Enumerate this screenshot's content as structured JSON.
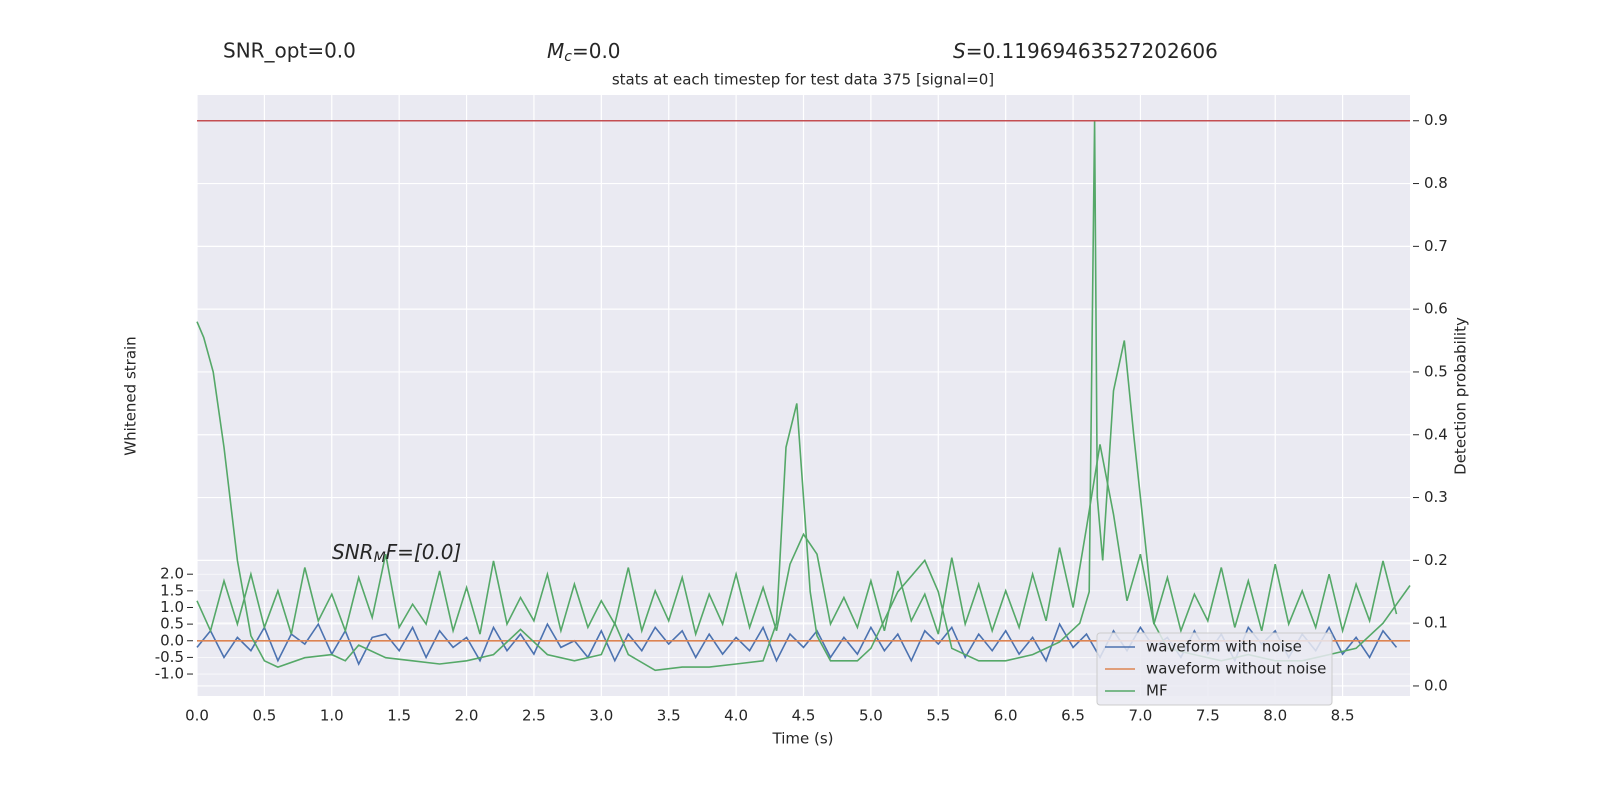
{
  "chart_data": {
    "type": "line",
    "title": "stats at each timestep for test data 375 [signal=0]",
    "annotations": {
      "snr_opt": "SNR_opt=0.0",
      "mc": [
        "M",
        "c",
        "=0.0"
      ],
      "s": [
        "S",
        "=0.11969463527202606"
      ],
      "snr_mf": [
        "SNR",
        "M",
        "F=[0.0]"
      ]
    },
    "xlabel": "Time (s)",
    "ylabel": "Whitened strain",
    "y2label": "Detection probability",
    "xlim": [
      0,
      9
    ],
    "ylim": [
      -1.66,
      16.4
    ],
    "y2lim": [
      -0.016,
      0.941
    ],
    "xticks": [
      {
        "value": 0,
        "label": "0.0"
      },
      {
        "value": 0.5,
        "label": "0.5"
      },
      {
        "value": 1,
        "label": "1.0"
      },
      {
        "value": 1.5,
        "label": "1.5"
      },
      {
        "value": 2,
        "label": "2.0"
      },
      {
        "value": 2.5,
        "label": "2.5"
      },
      {
        "value": 3,
        "label": "3.0"
      },
      {
        "value": 3.5,
        "label": "3.5"
      },
      {
        "value": 4,
        "label": "4.0"
      },
      {
        "value": 4.5,
        "label": "4.5"
      },
      {
        "value": 5,
        "label": "5.0"
      },
      {
        "value": 5.5,
        "label": "5.5"
      },
      {
        "value": 6,
        "label": "6.0"
      },
      {
        "value": 6.5,
        "label": "6.5"
      },
      {
        "value": 7,
        "label": "7.0"
      },
      {
        "value": 7.5,
        "label": "7.5"
      },
      {
        "value": 8,
        "label": "8.0"
      },
      {
        "value": 8.5,
        "label": "8.5"
      }
    ],
    "yticks": [
      {
        "value": -1,
        "label": "-1.0"
      },
      {
        "value": -0.5,
        "label": "-0.5"
      },
      {
        "value": 0,
        "label": "0.0"
      },
      {
        "value": 0.5,
        "label": "0.5"
      },
      {
        "value": 1,
        "label": "1.0"
      },
      {
        "value": 1.5,
        "label": "1.5"
      },
      {
        "value": 2,
        "label": "2.0"
      }
    ],
    "y2ticks": [
      {
        "value": 0,
        "label": "0.0"
      },
      0.1,
      0.2,
      0.3,
      0.4,
      0.5,
      0.6,
      0.7,
      0.8,
      0.9
    ],
    "grid": true,
    "legend": "lower right",
    "threshold": {
      "value": 0.9,
      "color": "#c44e52"
    },
    "series": [
      {
        "name": "waveform with noise",
        "color": "#4c72b0",
        "axis": "y",
        "x": [
          0,
          0.1,
          0.2,
          0.3,
          0.4,
          0.5,
          0.6,
          0.7,
          0.8,
          0.9,
          1,
          1.1,
          1.2,
          1.3,
          1.4,
          1.5,
          1.6,
          1.7,
          1.8,
          1.9,
          2,
          2.1,
          2.2,
          2.3,
          2.4,
          2.5,
          2.6,
          2.7,
          2.8,
          2.9,
          3,
          3.1,
          3.2,
          3.3,
          3.4,
          3.5,
          3.6,
          3.7,
          3.8,
          3.9,
          4,
          4.1,
          4.2,
          4.3,
          4.4,
          4.5,
          4.6,
          4.7,
          4.8,
          4.9,
          5,
          5.1,
          5.2,
          5.3,
          5.4,
          5.5,
          5.6,
          5.7,
          5.8,
          5.9,
          6,
          6.1,
          6.2,
          6.3,
          6.4,
          6.5,
          6.6,
          6.7,
          6.8,
          6.9,
          7,
          7.1,
          7.2,
          7.3,
          7.4,
          7.5,
          7.6,
          7.7,
          7.8,
          7.9,
          8,
          8.1,
          8.2,
          8.3,
          8.4,
          8.5,
          8.6,
          8.7,
          8.8,
          8.9
        ],
        "values": [
          -0.2,
          0.3,
          -0.5,
          0.1,
          -0.3,
          0.4,
          -0.6,
          0.2,
          -0.1,
          0.5,
          -0.4,
          0.3,
          -0.7,
          0.1,
          0.2,
          -0.3,
          0.4,
          -0.5,
          0.3,
          -0.2,
          0.1,
          -0.6,
          0.4,
          -0.3,
          0.2,
          -0.4,
          0.5,
          -0.2,
          0,
          -0.5,
          0.3,
          -0.6,
          0.2,
          -0.3,
          0.4,
          -0.1,
          0.3,
          -0.5,
          0.2,
          -0.4,
          0.1,
          -0.3,
          0.4,
          -0.6,
          0.2,
          -0.2,
          0.3,
          -0.5,
          0.1,
          -0.4,
          0.4,
          -0.3,
          0.2,
          -0.6,
          0.3,
          -0.1,
          0.4,
          -0.5,
          0.2,
          -0.3,
          0.3,
          -0.4,
          0.1,
          -0.6,
          0.5,
          -0.2,
          0.2,
          -0.5,
          0.3,
          -0.3,
          0.4,
          -0.2,
          0.1,
          -0.5,
          0.3,
          -0.4,
          0.2,
          -0.6,
          0.4,
          -0.1,
          0.3,
          -0.5,
          0.2,
          -0.3,
          0.4,
          -0.4,
          0.1,
          -0.5,
          0.3,
          -0.2
        ]
      },
      {
        "name": "waveform without noise",
        "color": "#dd8452",
        "axis": "y",
        "x": [
          0,
          9
        ],
        "values": [
          0,
          0
        ]
      },
      {
        "name": "MF",
        "color": "#55a868",
        "axis": "y",
        "x": [
          0,
          0.1,
          0.2,
          0.3,
          0.4,
          0.5,
          0.6,
          0.7,
          0.8,
          0.9,
          1,
          1.1,
          1.2,
          1.3,
          1.4,
          1.5,
          1.6,
          1.7,
          1.8,
          1.9,
          2,
          2.1,
          2.2,
          2.3,
          2.4,
          2.5,
          2.6,
          2.7,
          2.8,
          2.9,
          3,
          3.1,
          3.2,
          3.3,
          3.4,
          3.5,
          3.6,
          3.7,
          3.8,
          3.9,
          4,
          4.1,
          4.2,
          4.3,
          4.4,
          4.5,
          4.6,
          4.7,
          4.8,
          4.9,
          5,
          5.1,
          5.2,
          5.3,
          5.4,
          5.5,
          5.6,
          5.7,
          5.8,
          5.9,
          6,
          6.1,
          6.2,
          6.3,
          6.4,
          6.5,
          6.6,
          6.7,
          6.8,
          6.9,
          7,
          7.1,
          7.2,
          7.3,
          7.4,
          7.5,
          7.6,
          7.7,
          7.8,
          7.9,
          8,
          8.1,
          8.2,
          8.3,
          8.4,
          8.5,
          8.6,
          8.7,
          8.8,
          8.9
        ],
        "values": [
          1.2,
          0.3,
          1.8,
          0.5,
          2.0,
          0.4,
          1.5,
          0.2,
          2.2,
          0.6,
          1.4,
          0.3,
          1.9,
          0.7,
          2.6,
          0.4,
          1.1,
          0.5,
          2.1,
          0.3,
          1.6,
          0.2,
          2.4,
          0.5,
          1.3,
          0.6,
          2.0,
          0.3,
          1.7,
          0.4,
          1.2,
          0.5,
          2.2,
          0.3,
          1.5,
          0.6,
          1.9,
          0.2,
          1.4,
          0.5,
          2.0,
          0.4,
          1.6,
          0.3,
          2.3,
          3.2,
          2.6,
          0.5,
          1.3,
          0.4,
          1.8,
          0.3,
          2.1,
          0.6,
          1.4,
          0.2,
          2.5,
          0.5,
          1.7,
          0.3,
          1.5,
          0.4,
          2.0,
          0.6,
          2.8,
          1.0,
          3.4,
          5.9,
          3.8,
          1.2,
          2.6,
          0.5,
          1.9,
          0.3,
          1.4,
          0.6,
          2.2,
          0.4,
          1.8,
          0.3,
          2.3,
          0.5,
          1.5,
          0.4,
          2.0,
          0.3,
          1.7,
          0.6,
          2.4,
          0.8
        ]
      },
      {
        "color": "#55a868",
        "axis": "y2",
        "x": [
          0,
          0.05,
          0.12,
          0.2,
          0.3,
          0.4,
          0.5,
          0.6,
          0.8,
          1,
          1.1,
          1.2,
          1.4,
          1.6,
          1.8,
          2,
          2.2,
          2.4,
          2.6,
          2.8,
          3,
          3.1,
          3.2,
          3.4,
          3.6,
          3.8,
          4,
          4.2,
          4.3,
          4.37,
          4.45,
          4.5,
          4.55,
          4.6,
          4.7,
          4.9,
          5,
          5.2,
          5.4,
          5.5,
          5.6,
          5.8,
          6,
          6.2,
          6.4,
          6.55,
          6.62,
          6.66,
          6.68,
          6.72,
          6.8,
          6.88,
          6.95,
          7.05,
          7.1,
          7.2,
          7.4,
          7.6,
          7.8,
          8,
          8.2,
          8.4,
          8.6,
          8.8,
          9
        ],
        "values": [
          0.58,
          0.555,
          0.5,
          0.38,
          0.2,
          0.08,
          0.04,
          0.03,
          0.045,
          0.05,
          0.04,
          0.065,
          0.045,
          0.04,
          0.035,
          0.04,
          0.05,
          0.09,
          0.05,
          0.04,
          0.05,
          0.1,
          0.05,
          0.025,
          0.03,
          0.03,
          0.035,
          0.04,
          0.1,
          0.38,
          0.45,
          0.3,
          0.15,
          0.08,
          0.04,
          0.04,
          0.06,
          0.15,
          0.2,
          0.15,
          0.06,
          0.04,
          0.04,
          0.05,
          0.07,
          0.1,
          0.15,
          0.9,
          0.3,
          0.2,
          0.47,
          0.55,
          0.4,
          0.2,
          0.1,
          0.06,
          0.05,
          0.04,
          0.05,
          0.04,
          0.04,
          0.05,
          0.06,
          0.1,
          0.16
        ]
      }
    ]
  }
}
